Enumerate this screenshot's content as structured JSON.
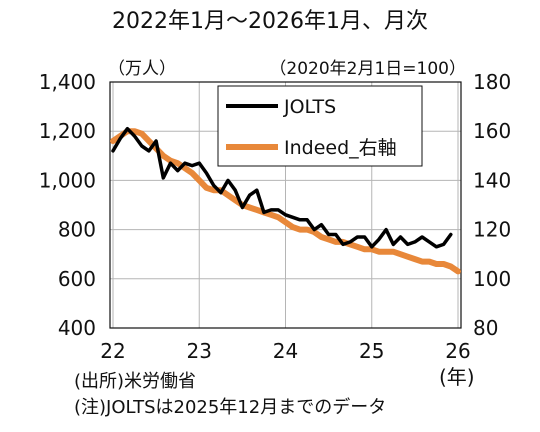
{
  "chart_data": {
    "type": "line",
    "title": "2022年1月～2026年1月、月次",
    "left_axis_unit": "（万人）",
    "right_axis_unit": "（2020年2月1日=100）",
    "x_tick_labels": [
      "22",
      "23",
      "24",
      "25",
      "26"
    ],
    "x_unit": "(年)",
    "left_axis": {
      "ylim": [
        400,
        1400
      ],
      "tick_labels": [
        "400",
        "600",
        "800",
        "1,000",
        "1,200",
        "1,400"
      ]
    },
    "right_axis": {
      "ylim": [
        80,
        180
      ],
      "tick_labels": [
        "80",
        "100",
        "120",
        "140",
        "160",
        "180"
      ]
    },
    "grid": true,
    "legend_placement": "top-right",
    "series": [
      {
        "name": "JOLTS",
        "axis": "left",
        "color": "#000000",
        "x": [
          "2022-01",
          "2022-02",
          "2022-03",
          "2022-04",
          "2022-05",
          "2022-06",
          "2022-07",
          "2022-08",
          "2022-09",
          "2022-10",
          "2022-11",
          "2022-12",
          "2023-01",
          "2023-02",
          "2023-03",
          "2023-04",
          "2023-05",
          "2023-06",
          "2023-07",
          "2023-08",
          "2023-09",
          "2023-10",
          "2023-11",
          "2023-12",
          "2024-01",
          "2024-02",
          "2024-03",
          "2024-04",
          "2024-05",
          "2024-06",
          "2024-07",
          "2024-08",
          "2024-09",
          "2024-10",
          "2024-11",
          "2024-12",
          "2025-01",
          "2025-02",
          "2025-03",
          "2025-04",
          "2025-05",
          "2025-06",
          "2025-07",
          "2025-08",
          "2025-09",
          "2025-10",
          "2025-11",
          "2025-12"
        ],
        "values": [
          1120,
          1170,
          1210,
          1180,
          1140,
          1120,
          1160,
          1010,
          1070,
          1040,
          1070,
          1060,
          1070,
          1030,
          980,
          950,
          1000,
          960,
          890,
          940,
          960,
          870,
          880,
          880,
          860,
          850,
          840,
          840,
          800,
          820,
          780,
          780,
          740,
          750,
          770,
          770,
          730,
          760,
          800,
          740,
          770,
          740,
          750,
          770,
          750,
          730,
          740,
          780
        ]
      },
      {
        "name": "Indeed_右軸",
        "axis": "right",
        "color": "#e8883a",
        "x": [
          "2022-01",
          "2022-02",
          "2022-03",
          "2022-04",
          "2022-05",
          "2022-06",
          "2022-07",
          "2022-08",
          "2022-09",
          "2022-10",
          "2022-11",
          "2022-12",
          "2023-01",
          "2023-02",
          "2023-03",
          "2023-04",
          "2023-05",
          "2023-06",
          "2023-07",
          "2023-08",
          "2023-09",
          "2023-10",
          "2023-11",
          "2023-12",
          "2024-01",
          "2024-02",
          "2024-03",
          "2024-04",
          "2024-05",
          "2024-06",
          "2024-07",
          "2024-08",
          "2024-09",
          "2024-10",
          "2024-11",
          "2024-12",
          "2025-01",
          "2025-02",
          "2025-03",
          "2025-04",
          "2025-05",
          "2025-06",
          "2025-07",
          "2025-08",
          "2025-09",
          "2025-10",
          "2025-11",
          "2025-12",
          "2026-01"
        ],
        "values": [
          156,
          158,
          160,
          160,
          159,
          156,
          153,
          150,
          148,
          147,
          145,
          143,
          140,
          137,
          136,
          136,
          134,
          132,
          130,
          129,
          128,
          127,
          126,
          125,
          123,
          121,
          120,
          120,
          119,
          117,
          116,
          115,
          115,
          114,
          113,
          112,
          112,
          111,
          111,
          111,
          110,
          109,
          108,
          107,
          107,
          106,
          106,
          105,
          103
        ]
      }
    ]
  },
  "notes": {
    "source": "(出所)米労働省",
    "note": "(注)JOLTSは2025年12月までのデータ"
  }
}
